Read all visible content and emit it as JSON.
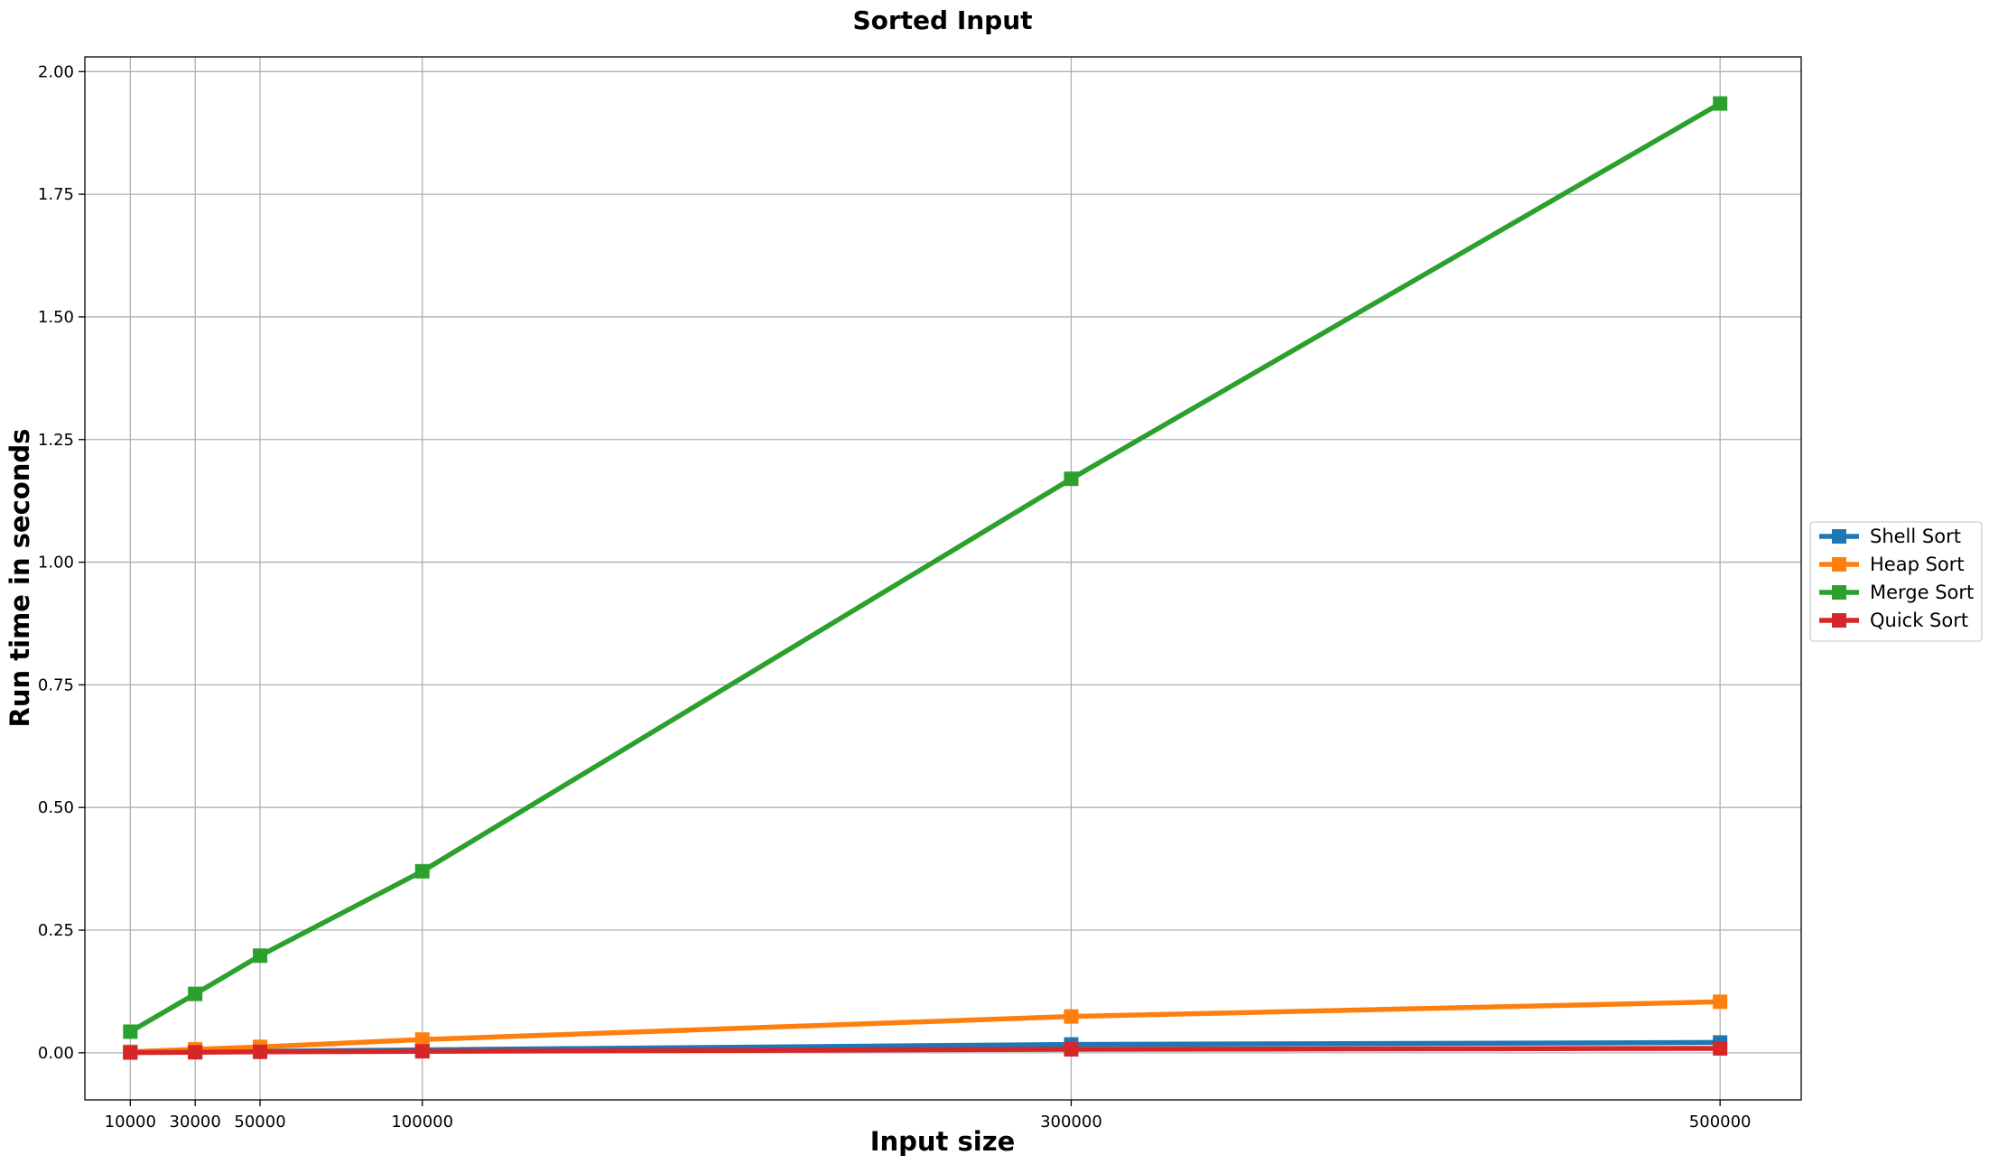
{
  "chart_data": {
    "type": "line",
    "title": "Sorted Input",
    "xlabel": "Input size",
    "ylabel": "Run time in seconds",
    "x": [
      10000,
      30000,
      50000,
      100000,
      300000,
      500000
    ],
    "xticks": [
      10000,
      30000,
      50000,
      100000,
      300000,
      500000
    ],
    "xlim": [
      -4000,
      525000
    ],
    "yticks": [
      0.0,
      0.25,
      0.5,
      0.75,
      1.0,
      1.25,
      1.5,
      1.75,
      2.0
    ],
    "ytick_labels": [
      "0.00",
      "0.25",
      "0.50",
      "0.75",
      "1.00",
      "1.25",
      "1.50",
      "1.75",
      "2.00"
    ],
    "ylim": [
      -0.096,
      2.03
    ],
    "grid": true,
    "legend_position": "center-right-outside",
    "series": [
      {
        "name": "Shell Sort",
        "color": "#1f77b4",
        "values": [
          0.001,
          0.002,
          0.003,
          0.006,
          0.017,
          0.021
        ]
      },
      {
        "name": "Heap Sort",
        "color": "#ff7f0e",
        "values": [
          0.002,
          0.007,
          0.012,
          0.027,
          0.074,
          0.104
        ]
      },
      {
        "name": "Merge Sort",
        "color": "#2ca02c",
        "values": [
          0.043,
          0.12,
          0.198,
          0.37,
          1.17,
          1.935
        ]
      },
      {
        "name": "Quick Sort",
        "color": "#d62728",
        "values": [
          0.0005,
          0.001,
          0.002,
          0.003,
          0.007,
          0.009
        ]
      }
    ]
  }
}
